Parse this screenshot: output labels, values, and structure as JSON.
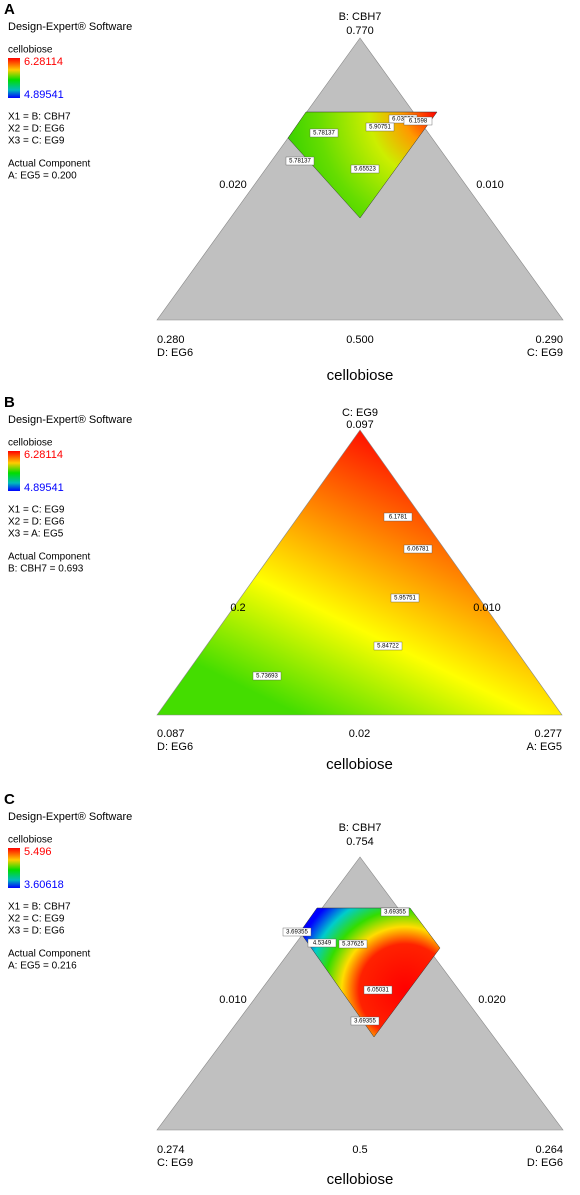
{
  "chart_data": [
    {
      "type": "ternary",
      "panel": "A",
      "software": "Design-Expert® Software",
      "response": "cellobiose",
      "color_max": 6.28114,
      "color_min": 4.89541,
      "variables": [
        "X1 = B: CBH7",
        "X2 = D: EG6",
        "X3 = C: EG9"
      ],
      "actual_component_title": "Actual Component",
      "actual_component": "A: EG5 = 0.200",
      "top_name": "B: CBH7",
      "top_value": "0.770",
      "left_value": "0.280",
      "left_name": "D: EG6",
      "right_value": "0.290",
      "right_name": "C: EG9",
      "bottom_value": "0.500",
      "left_side": "0.020",
      "right_side": "0.010",
      "x_label": "cellobiose",
      "contour_labels": [
        6.03366,
        6.1598,
        5.90751,
        5.78137,
        5.78137,
        5.65523
      ]
    },
    {
      "type": "ternary",
      "panel": "B",
      "software": "Design-Expert® Software",
      "response": "cellobiose",
      "color_max": 6.28114,
      "color_min": 4.89541,
      "variables": [
        "X1 = C: EG9",
        "X2 = D: EG6",
        "X3 = A: EG5"
      ],
      "actual_component_title": "Actual Component",
      "actual_component": "B: CBH7 = 0.693",
      "top_name": "C: EG9",
      "top_value": "0.097",
      "left_value": "0.087",
      "left_name": "D: EG6",
      "right_value": "0.277",
      "right_name": "A: EG5",
      "bottom_value": "0.02",
      "left_side": "0.2",
      "right_side": "0.010",
      "x_label": "cellobiose",
      "contour_labels": [
        6.1781,
        6.06781,
        5.95751,
        5.84722,
        5.73693
      ]
    },
    {
      "type": "ternary",
      "panel": "C",
      "software": "Design-Expert® Software",
      "response": "cellobiose",
      "color_max": 5.496,
      "color_min": 3.60618,
      "variables": [
        "X1 = B: CBH7",
        "X2 = C: EG9",
        "X3 = D: EG6"
      ],
      "actual_component_title": "Actual Component",
      "actual_component": "A: EG5 = 0.216",
      "top_name": "B: CBH7",
      "top_value": "0.754",
      "left_value": "0.274",
      "left_name": "C: EG9",
      "right_value": "0.264",
      "right_name": "D: EG6",
      "bottom_value": "0.5",
      "left_side": "0.010",
      "right_side": "0.020",
      "x_label": "cellobiose",
      "contour_labels": [
        3.69355,
        3.69355,
        4.5349,
        5.37625,
        6.05031,
        3.69355
      ]
    }
  ]
}
